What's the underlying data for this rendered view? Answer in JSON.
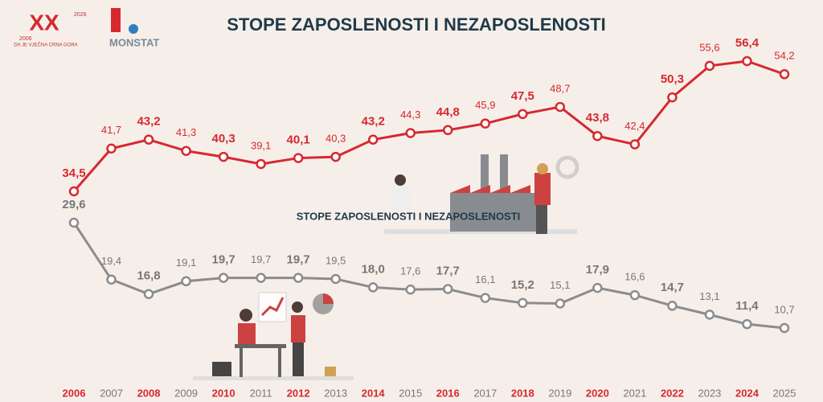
{
  "branding": {
    "logo_years_start": "2006",
    "logo_years_end": "2026",
    "logo_motto": "DA JE VJEČNA CRNA GORA",
    "agency": "MONSTAT"
  },
  "chart_data": {
    "type": "line",
    "title": "STOPE ZAPOSLENOSTI I NEZAPOSLENOSTI",
    "watermark": "STOPE ZAPOSLENOSTI I NEZAPOSLENOSTI",
    "categories": [
      "2006",
      "2007",
      "2008",
      "2009",
      "2010",
      "2011",
      "2012",
      "2013",
      "2014",
      "2015",
      "2016",
      "2017",
      "2018",
      "2019",
      "2020",
      "2021",
      "2022",
      "2023",
      "2024",
      "2025"
    ],
    "series": [
      {
        "color": "#d7282f",
        "values": [
          34.5,
          41.7,
          43.2,
          41.3,
          40.3,
          39.1,
          40.1,
          40.3,
          43.2,
          44.3,
          44.8,
          45.9,
          47.5,
          48.7,
          43.8,
          42.4,
          50.3,
          55.6,
          56.4,
          54.2
        ],
        "value_labels": [
          "34,5",
          "41,7",
          "43,2",
          "41,3",
          "40,3",
          "39,1",
          "40,1",
          "40,3",
          "43,2",
          "44,3",
          "44,8",
          "45,9",
          "47,5",
          "48,7",
          "43,8",
          "42,4",
          "50,3",
          "55,6",
          "56,4",
          "54,2"
        ]
      },
      {
        "color": "#8c8c8c",
        "values": [
          29.6,
          19.4,
          16.8,
          19.1,
          19.7,
          19.7,
          19.7,
          19.5,
          18.0,
          17.6,
          17.7,
          16.1,
          15.2,
          15.1,
          17.9,
          16.6,
          14.7,
          13.1,
          11.4,
          10.7
        ],
        "value_labels": [
          "29,6",
          "19,4",
          "16,8",
          "19,1",
          "19,7",
          "19,7",
          "19,7",
          "19,5",
          "18,0",
          "17,6",
          "17,7",
          "16,1",
          "15,2",
          "15,1",
          "17,9",
          "16,6",
          "14,7",
          "13,1",
          "11,4",
          "10,7"
        ]
      }
    ]
  }
}
